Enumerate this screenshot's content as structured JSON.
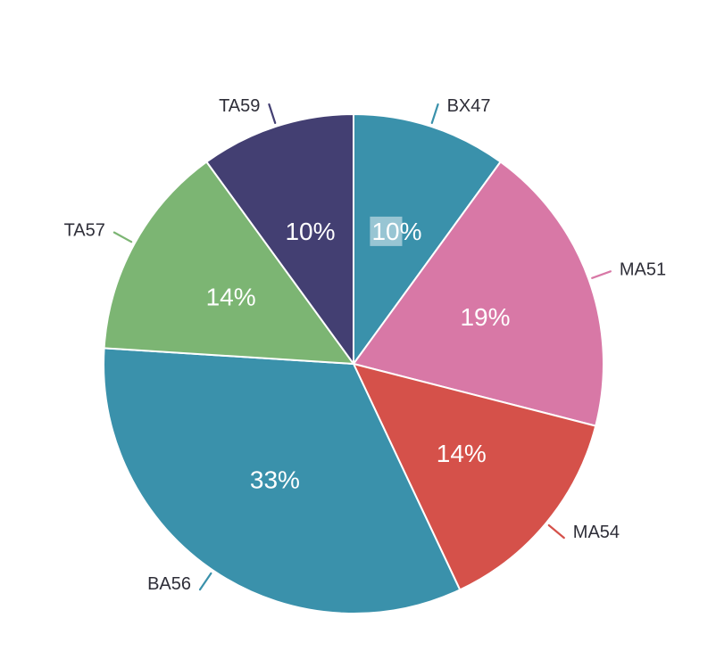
{
  "chart_data": {
    "type": "pie",
    "title": "",
    "legend": "none",
    "background": "#ffffff",
    "start_angle_deg_clockwise_from_top": 0,
    "direction": "clockwise",
    "categories": [
      "BX47",
      "MA51",
      "MA54",
      "BA56",
      "TA57",
      "TA59"
    ],
    "values": [
      10,
      19,
      14,
      33,
      14,
      10
    ],
    "slice_texts": [
      "10%",
      "19%",
      "14%",
      "33%",
      "14%",
      "10%"
    ],
    "colors": [
      "#3A91AB",
      "#D878A6",
      "#D5514A",
      "#3A91AB",
      "#7CB573",
      "#433F72"
    ],
    "label_text_color": "#2E2E38",
    "slice_text_color": "#FFFFFF",
    "selection_highlight": {
      "slice": "BX47",
      "highlighted_text": "10",
      "color": "rgba(255,255,255,0.48)"
    }
  }
}
